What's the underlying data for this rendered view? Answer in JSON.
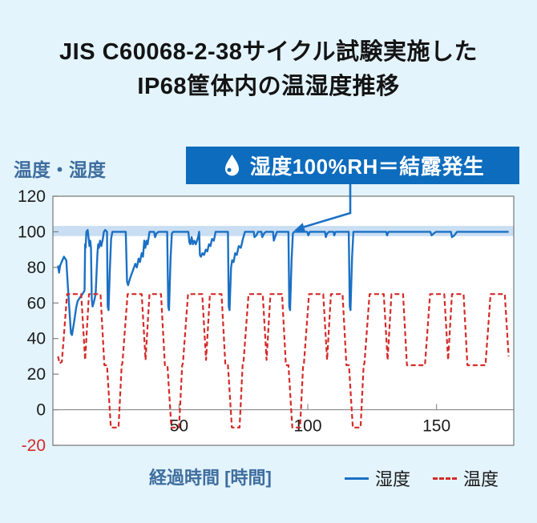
{
  "title": {
    "line1": "JIS C60068-2-38サイクル試験実施した",
    "line2": "IP68筐体内の温湿度推移"
  },
  "callout": {
    "text": "湿度100%RH＝結露発生",
    "icon": "water-drop"
  },
  "colors": {
    "background": "#e3f4fd",
    "plot_background": "#ffffff",
    "badge_background": "#0d6cbd",
    "humidity_line": "#1b70c5",
    "temperature_line": "#d42a28",
    "condensation_band": "#c9def3",
    "axis": "#7f7f7f",
    "zero_line": "#8c8c8c",
    "tick_text": "#1c1c1c",
    "negative_tick_text": "#d42a28",
    "label_blue": "#3f6e9e",
    "title_text": "#141414"
  },
  "chart_data": {
    "type": "line",
    "ylabel": "温度・湿度",
    "xlabel": "経過時間 [時間]",
    "x_range": [
      1,
      180
    ],
    "y_range": [
      -20,
      120
    ],
    "y_ticks": [
      120,
      100,
      80,
      60,
      40,
      20,
      0,
      -20
    ],
    "x_ticks": [
      50,
      100,
      150
    ],
    "grid": false,
    "zero_axis_line": true,
    "legend_position": "bottom-right",
    "condensation_band": {
      "y_from": 97.6,
      "y_to": 103.3
    },
    "series": [
      {
        "key": "humidity",
        "name": "湿度",
        "style": "solid",
        "unit": "%RH",
        "points": [
          [
            3,
            81
          ],
          [
            3.4,
            77
          ],
          [
            3.8,
            81
          ],
          [
            5.3,
            86
          ],
          [
            6.2,
            84
          ],
          [
            6.8,
            70
          ],
          [
            8,
            43
          ],
          [
            8.4,
            42
          ],
          [
            9.3,
            50
          ],
          [
            10,
            57
          ],
          [
            10.6,
            61
          ],
          [
            11.5,
            63
          ],
          [
            12.5,
            65
          ],
          [
            13.3,
            67
          ],
          [
            13.5,
            93
          ],
          [
            13.7,
            91
          ],
          [
            14,
            100
          ],
          [
            14.5,
            101
          ],
          [
            14.9,
            96
          ],
          [
            15.2,
            92
          ],
          [
            15.5,
            95
          ],
          [
            15.8,
            91
          ],
          [
            16.1,
            62
          ],
          [
            16.4,
            58
          ],
          [
            17,
            61
          ],
          [
            17.6,
            65
          ],
          [
            18.3,
            88
          ],
          [
            18.6,
            93
          ],
          [
            18.9,
            91
          ],
          [
            19.3,
            95
          ],
          [
            19.8,
            92
          ],
          [
            20.4,
            96
          ],
          [
            20.8,
            100
          ],
          [
            21.3,
            101
          ],
          [
            22,
            100
          ],
          [
            22.3,
            58
          ],
          [
            22.6,
            56
          ],
          [
            23.1,
            78
          ],
          [
            23.6,
            96
          ],
          [
            24.1,
            100
          ],
          [
            29.3,
            100
          ],
          [
            29.8,
            72
          ],
          [
            30.2,
            70
          ],
          [
            31,
            74
          ],
          [
            32,
            78
          ],
          [
            33,
            82
          ],
          [
            33.6,
            80
          ],
          [
            34.3,
            85
          ],
          [
            34.8,
            83
          ],
          [
            35.5,
            88
          ],
          [
            36,
            86
          ],
          [
            36.5,
            95
          ],
          [
            36.9,
            91
          ],
          [
            37.4,
            95
          ],
          [
            37.8,
            93
          ],
          [
            38.5,
            100
          ],
          [
            40.3,
            100
          ],
          [
            40.7,
            97
          ],
          [
            41.2,
            99
          ],
          [
            42,
            100
          ],
          [
            45.4,
            100
          ],
          [
            45.8,
            58
          ],
          [
            46.1,
            56
          ],
          [
            46.7,
            85
          ],
          [
            47.2,
            99
          ],
          [
            47.7,
            100
          ],
          [
            53.6,
            100
          ],
          [
            54,
            94
          ],
          [
            54.4,
            93
          ],
          [
            54.9,
            97
          ],
          [
            55.4,
            93
          ],
          [
            55.9,
            95
          ],
          [
            56.5,
            93
          ],
          [
            57.4,
            97
          ],
          [
            57.8,
            100
          ],
          [
            58.1,
            87
          ],
          [
            58.5,
            86
          ],
          [
            59.1,
            88
          ],
          [
            59.7,
            87
          ],
          [
            60.4,
            90
          ],
          [
            61,
            89
          ],
          [
            61.6,
            93
          ],
          [
            62.2,
            92
          ],
          [
            62.8,
            96
          ],
          [
            63.5,
            95
          ],
          [
            64.2,
            100
          ],
          [
            69,
            100
          ],
          [
            69.3,
            58
          ],
          [
            69.6,
            56
          ],
          [
            70.2,
            80
          ],
          [
            70.6,
            84
          ],
          [
            71.2,
            83
          ],
          [
            71.8,
            88
          ],
          [
            72.4,
            87
          ],
          [
            73.2,
            92
          ],
          [
            74,
            91
          ],
          [
            74.8,
            96
          ],
          [
            75.6,
            100
          ],
          [
            79,
            100
          ],
          [
            79.3,
            97
          ],
          [
            80,
            98
          ],
          [
            80.7,
            100
          ],
          [
            82,
            100
          ],
          [
            82.3,
            97
          ],
          [
            83,
            99
          ],
          [
            83.7,
            100
          ],
          [
            86.5,
            100
          ],
          [
            86.8,
            95
          ],
          [
            87.3,
            97
          ],
          [
            88,
            100
          ],
          [
            92.5,
            100
          ],
          [
            92.8,
            58
          ],
          [
            93.1,
            56
          ],
          [
            93.7,
            84
          ],
          [
            94.2,
            99
          ],
          [
            94.7,
            100
          ],
          [
            99.8,
            100
          ],
          [
            100.2,
            98
          ],
          [
            100.8,
            100
          ],
          [
            106.7,
            100
          ],
          [
            107,
            97
          ],
          [
            107.5,
            99
          ],
          [
            108.2,
            100
          ],
          [
            110,
            100
          ],
          [
            110.3,
            98
          ],
          [
            110.8,
            100
          ],
          [
            115.9,
            100
          ],
          [
            116.3,
            58
          ],
          [
            116.6,
            56
          ],
          [
            117.2,
            86
          ],
          [
            117.7,
            100
          ],
          [
            130.4,
            100
          ],
          [
            130.8,
            98
          ],
          [
            131.3,
            100
          ],
          [
            147.6,
            100
          ],
          [
            148.1,
            98
          ],
          [
            148.9,
            99
          ],
          [
            149.8,
            100
          ],
          [
            155.6,
            100
          ],
          [
            156,
            97
          ],
          [
            156.9,
            98
          ],
          [
            158,
            100
          ],
          [
            178,
            100
          ]
        ]
      },
      {
        "key": "temperature",
        "name": "温度",
        "style": "dashed",
        "unit": "°C",
        "points": [
          [
            3,
            30
          ],
          [
            3.6,
            26
          ],
          [
            4.5,
            27
          ],
          [
            6.5,
            65
          ],
          [
            12,
            65
          ],
          [
            13.5,
            28
          ],
          [
            15,
            65
          ],
          [
            19.5,
            65
          ],
          [
            21,
            25
          ],
          [
            22,
            25
          ],
          [
            23.5,
            -10
          ],
          [
            26.5,
            -10
          ],
          [
            27.7,
            25
          ],
          [
            28,
            26
          ],
          [
            30,
            65
          ],
          [
            35.5,
            65
          ],
          [
            37,
            28
          ],
          [
            38.5,
            65
          ],
          [
            43,
            65
          ],
          [
            44.5,
            25
          ],
          [
            45.5,
            25
          ],
          [
            47,
            -10
          ],
          [
            50,
            -10
          ],
          [
            51.2,
            25
          ],
          [
            51.5,
            26
          ],
          [
            53.5,
            65
          ],
          [
            59,
            65
          ],
          [
            60.5,
            28
          ],
          [
            62,
            65
          ],
          [
            66.5,
            65
          ],
          [
            68,
            25
          ],
          [
            69,
            25
          ],
          [
            70.5,
            -10
          ],
          [
            73.5,
            -10
          ],
          [
            74.7,
            25
          ],
          [
            75,
            26
          ],
          [
            77,
            65
          ],
          [
            82.5,
            65
          ],
          [
            84,
            28
          ],
          [
            85.5,
            65
          ],
          [
            90,
            65
          ],
          [
            91.5,
            25
          ],
          [
            92.5,
            25
          ],
          [
            94,
            -10
          ],
          [
            97,
            -10
          ],
          [
            98.2,
            25
          ],
          [
            98.5,
            26
          ],
          [
            100.5,
            65
          ],
          [
            106,
            65
          ],
          [
            107.5,
            28
          ],
          [
            109,
            65
          ],
          [
            113.5,
            65
          ],
          [
            115,
            25
          ],
          [
            116,
            25
          ],
          [
            117.5,
            -10
          ],
          [
            120.5,
            -10
          ],
          [
            121.7,
            25
          ],
          [
            122,
            26
          ],
          [
            124,
            65
          ],
          [
            129.5,
            65
          ],
          [
            131,
            28
          ],
          [
            132.5,
            65
          ],
          [
            137,
            65
          ],
          [
            138.5,
            25
          ],
          [
            145.5,
            25
          ],
          [
            147.5,
            65
          ],
          [
            153,
            65
          ],
          [
            154.5,
            28
          ],
          [
            156,
            65
          ],
          [
            160.5,
            65
          ],
          [
            162,
            25
          ],
          [
            169,
            25
          ],
          [
            171,
            65
          ],
          [
            176.5,
            65
          ],
          [
            178,
            30
          ]
        ]
      }
    ]
  }
}
